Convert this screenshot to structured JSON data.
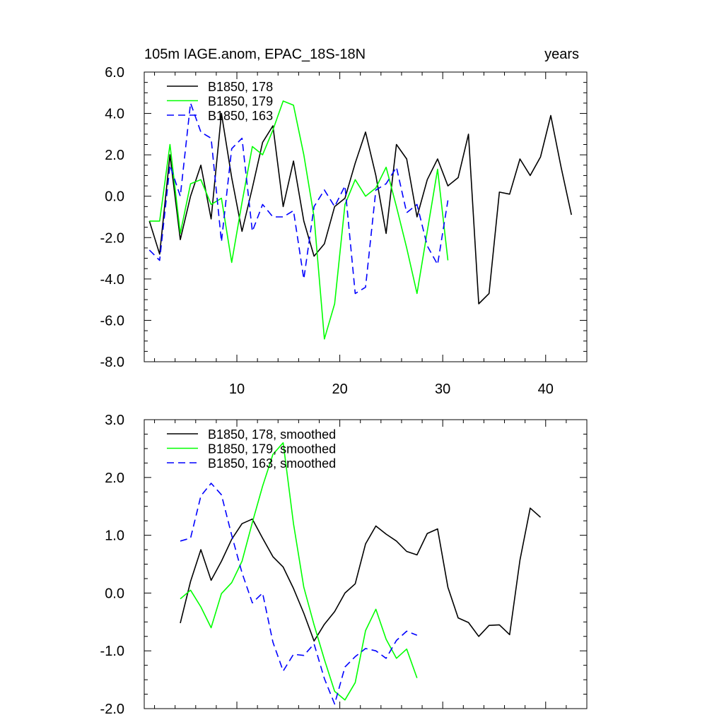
{
  "chart_data": [
    {
      "type": "line",
      "title_left": "105m IAGE.anom, EPAC_18S-18N",
      "title_right": "years",
      "xlim": [
        1,
        44
      ],
      "ylim": [
        -8,
        6
      ],
      "y_ticks": [
        6,
        4,
        2,
        0,
        -2,
        -4,
        -6,
        -8
      ],
      "y_tick_labels": [
        "6.0",
        "4.0",
        "2.0",
        "0.0",
        "-2.0",
        "-4.0",
        "-6.0",
        "-8.0"
      ],
      "x_ticks": [
        10,
        20,
        30,
        40
      ],
      "x_tick_labels": [
        "10",
        "20",
        "30",
        "40"
      ],
      "legend_position": "top-left",
      "series": [
        {
          "name": "B1850, 178",
          "color": "#000000",
          "dash": "solid",
          "x": [
            1.5,
            2.5,
            3.5,
            4.5,
            5.5,
            6.5,
            7.5,
            8.5,
            9.5,
            10.5,
            11.5,
            12.5,
            13.5,
            14.5,
            15.5,
            16.5,
            17.5,
            18.5,
            19.5,
            20.5,
            21.5,
            22.5,
            23.5,
            24.5,
            25.5,
            26.5,
            27.5,
            28.5,
            29.5,
            30.5,
            31.5,
            32.5,
            33.5,
            34.5,
            35.5,
            36.5,
            37.5,
            38.5,
            39.5,
            40.5,
            41.5,
            42.5
          ],
          "y": [
            -1.2,
            -2.8,
            2.0,
            -2.1,
            0.0,
            1.5,
            -1.1,
            4.0,
            0.9,
            -1.7,
            0.4,
            2.6,
            3.4,
            -0.5,
            1.7,
            -1.2,
            -2.9,
            -2.3,
            -0.5,
            -0.1,
            1.6,
            3.1,
            1.0,
            -1.8,
            2.5,
            1.8,
            -1.0,
            0.8,
            1.8,
            0.5,
            0.9,
            3.0,
            -5.2,
            -4.7,
            0.2,
            0.1,
            1.8,
            1.0,
            1.9,
            3.9,
            1.4,
            -0.9
          ]
        },
        {
          "name": "B1850, 179",
          "color": "#00ff00",
          "dash": "solid",
          "x": [
            1.5,
            2.5,
            3.5,
            4.5,
            5.5,
            6.5,
            7.5,
            8.5,
            9.5,
            10.5,
            11.5,
            12.5,
            13.5,
            14.5,
            15.5,
            16.5,
            17.5,
            18.5,
            19.5,
            20.5,
            21.5,
            22.5,
            23.5,
            24.5,
            25.5,
            26.5,
            27.5,
            28.5,
            29.5,
            30.5
          ],
          "y": [
            -1.2,
            -1.2,
            2.5,
            -1.8,
            0.6,
            0.8,
            -0.4,
            -0.1,
            -3.2,
            -0.3,
            2.4,
            2.0,
            3.2,
            4.6,
            4.4,
            2.0,
            -1.0,
            -6.9,
            -5.2,
            -0.4,
            0.8,
            0.0,
            0.4,
            1.4,
            -0.5,
            -2.5,
            -4.7,
            -1.7,
            1.3,
            -3.1
          ]
        },
        {
          "name": "B1850, 163",
          "color": "#0000ff",
          "dash": "dashed",
          "x": [
            1.5,
            2.5,
            3.5,
            4.5,
            5.5,
            6.5,
            7.5,
            8.5,
            9.5,
            10.5,
            11.5,
            12.5,
            13.5,
            14.5,
            15.5,
            16.5,
            17.5,
            18.5,
            19.5,
            20.5,
            21.5,
            22.5,
            23.5,
            24.5,
            25.5,
            26.5,
            27.5,
            28.5,
            29.5,
            30.5
          ],
          "y": [
            -2.6,
            -3.1,
            1.5,
            0.0,
            4.5,
            3.1,
            2.8,
            -2.2,
            2.3,
            2.8,
            -1.7,
            -0.4,
            -1.0,
            -1.0,
            -0.7,
            -4.0,
            -0.5,
            0.3,
            -0.5,
            0.5,
            -4.7,
            -4.4,
            0.3,
            0.6,
            1.4,
            -0.8,
            -0.4,
            -2.4,
            -3.3,
            -0.2
          ]
        }
      ]
    },
    {
      "type": "line",
      "xlim": [
        1,
        44
      ],
      "ylim": [
        -2,
        3
      ],
      "y_ticks": [
        3,
        2,
        1,
        0,
        -1,
        -2
      ],
      "y_tick_labels": [
        "3.0",
        "2.0",
        "1.0",
        "0.0",
        "-1.0",
        "-2.0"
      ],
      "x_ticks": [
        10,
        20,
        30,
        40
      ],
      "legend_position": "top-left",
      "series": [
        {
          "name": "B1850, 178, smoothed",
          "color": "#000000",
          "dash": "solid",
          "x": [
            4.5,
            5.5,
            6.5,
            7.5,
            8.5,
            9.5,
            10.5,
            11.5,
            12.5,
            13.5,
            14.5,
            15.5,
            16.5,
            17.5,
            18.5,
            19.5,
            20.5,
            21.5,
            22.5,
            23.5,
            24.5,
            25.5,
            26.5,
            27.5,
            28.5,
            29.5,
            30.5,
            31.5,
            32.5,
            33.5,
            34.5,
            35.5,
            36.5,
            37.5,
            38.5,
            39.5
          ],
          "y": [
            -0.52,
            0.2,
            0.75,
            0.22,
            0.55,
            0.93,
            1.2,
            1.28,
            0.95,
            0.63,
            0.45,
            0.08,
            -0.35,
            -0.83,
            -0.54,
            -0.32,
            0.0,
            0.16,
            0.85,
            1.16,
            1.02,
            0.9,
            0.72,
            0.66,
            1.03,
            1.11,
            0.1,
            -0.43,
            -0.51,
            -0.75,
            -0.56,
            -0.55,
            -0.72,
            0.57,
            1.47,
            1.31
          ]
        },
        {
          "name": "B1850, 179, smoothed",
          "color": "#00ff00",
          "dash": "solid",
          "x": [
            4.5,
            5.5,
            6.5,
            7.5,
            8.5,
            9.5,
            10.5,
            11.5,
            12.5,
            13.5,
            14.5,
            15.5,
            16.5,
            17.5,
            18.5,
            19.5,
            20.5,
            21.5,
            22.5,
            23.5,
            24.5,
            25.5,
            26.5,
            27.5
          ],
          "y": [
            -0.1,
            0.05,
            -0.24,
            -0.6,
            -0.01,
            0.18,
            0.55,
            1.22,
            1.85,
            2.4,
            2.6,
            1.2,
            0.1,
            -0.55,
            -1.15,
            -1.7,
            -1.85,
            -1.55,
            -0.65,
            -0.28,
            -0.8,
            -1.13,
            -0.97,
            -1.47
          ]
        },
        {
          "name": "B1850, 163, smoothed",
          "color": "#0000ff",
          "dash": "dashed",
          "x": [
            4.5,
            5.5,
            6.5,
            7.5,
            8.5,
            9.5,
            10.5,
            11.5,
            12.5,
            13.5,
            14.5,
            15.5,
            16.5,
            17.5,
            18.5,
            19.5,
            20.5,
            21.5,
            22.5,
            23.5,
            24.5,
            25.5,
            26.5,
            27.5
          ],
          "y": [
            0.9,
            0.95,
            1.68,
            1.9,
            1.7,
            1.0,
            0.35,
            -0.17,
            0.0,
            -0.85,
            -1.35,
            -1.06,
            -1.08,
            -0.88,
            -1.48,
            -1.92,
            -1.28,
            -1.1,
            -0.96,
            -1.0,
            -1.13,
            -0.82,
            -0.66,
            -0.73
          ]
        }
      ]
    }
  ]
}
